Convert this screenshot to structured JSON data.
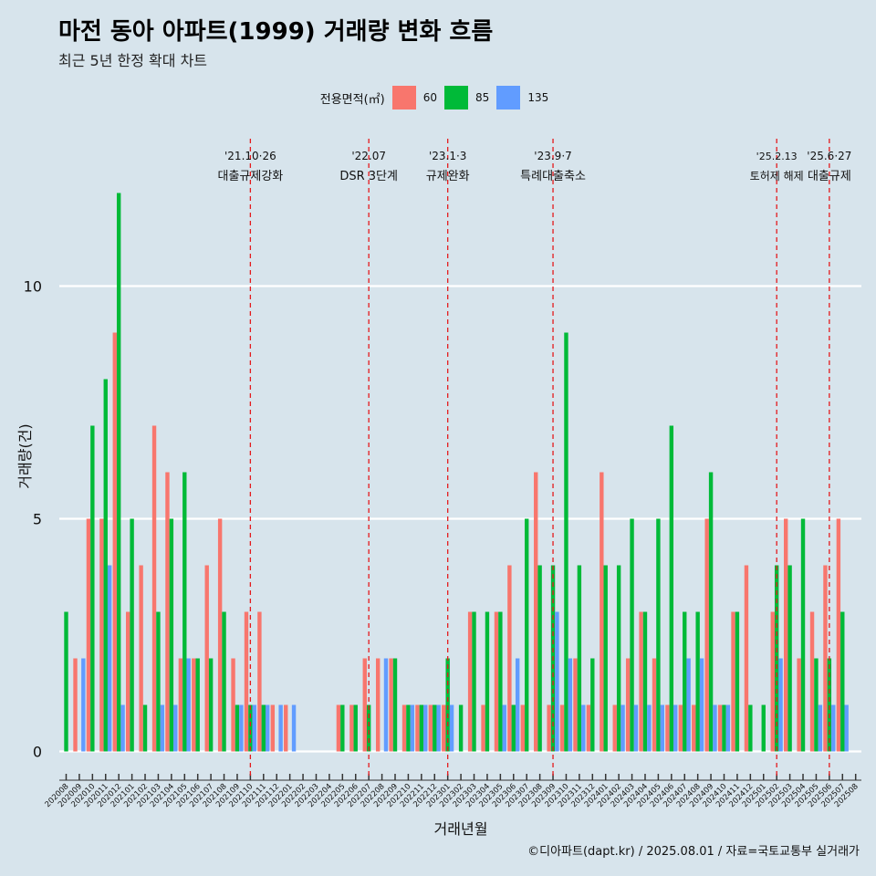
{
  "title": "마전 동아 아파트(1999) 거래량 변화 흐름",
  "subtitle": "최근 5년 한정 확대 차트",
  "caption": "©디아파트(dapt.kr) / 2025.08.01 / 자료=국토교통부 실거래가",
  "legend": {
    "title": "전용면적(㎡)",
    "items": [
      {
        "label": "60",
        "color": "#f8766d"
      },
      {
        "label": "85",
        "color": "#00ba38"
      },
      {
        "label": "135",
        "color": "#619cff"
      }
    ]
  },
  "chart_data": {
    "type": "bar",
    "xlabel": "거래년월",
    "ylabel": "거래량(건)",
    "ylim": [
      0,
      12.5
    ],
    "yticks": [
      0,
      5,
      10
    ],
    "grid": true,
    "categories": [
      "202008",
      "202009",
      "202010",
      "202011",
      "202012",
      "202101",
      "202102",
      "202103",
      "202104",
      "202105",
      "202106",
      "202107",
      "202108",
      "202109",
      "202110",
      "202111",
      "202112",
      "202201",
      "202202",
      "202203",
      "202204",
      "202205",
      "202206",
      "202207",
      "202208",
      "202209",
      "202210",
      "202211",
      "202212",
      "202301",
      "202302",
      "202303",
      "202304",
      "202305",
      "202306",
      "202307",
      "202308",
      "202309",
      "202310",
      "202311",
      "202312",
      "202401",
      "202402",
      "202403",
      "202404",
      "202405",
      "202406",
      "202407",
      "202408",
      "202409",
      "202410",
      "202411",
      "202412",
      "202501",
      "202502",
      "202503",
      "202504",
      "202505",
      "202506",
      "202507",
      "202508"
    ],
    "series": [
      {
        "name": "60",
        "color": "#f8766d",
        "values": [
          0,
          2,
          5,
          5,
          9,
          3,
          4,
          7,
          6,
          2,
          2,
          4,
          5,
          2,
          3,
          3,
          1,
          1,
          0,
          0,
          0,
          1,
          1,
          2,
          2,
          2,
          1,
          1,
          1,
          1,
          0,
          3,
          1,
          3,
          4,
          1,
          6,
          1,
          1,
          2,
          1,
          6,
          1,
          2,
          3,
          2,
          1,
          1,
          1,
          5,
          1,
          3,
          4,
          0,
          3,
          5,
          2,
          3,
          4,
          5,
          0
        ]
      },
      {
        "name": "85",
        "color": "#00ba38",
        "values": [
          3,
          0,
          7,
          8,
          12,
          5,
          1,
          3,
          5,
          6,
          2,
          2,
          3,
          1,
          1,
          1,
          0,
          0,
          0,
          0,
          0,
          1,
          1,
          1,
          0,
          2,
          1,
          1,
          1,
          2,
          1,
          3,
          3,
          3,
          1,
          5,
          4,
          4,
          9,
          4,
          2,
          4,
          4,
          5,
          3,
          5,
          7,
          3,
          3,
          6,
          1,
          3,
          1,
          1,
          4,
          4,
          5,
          2,
          2,
          3,
          0
        ]
      },
      {
        "name": "135",
        "color": "#619cff",
        "values": [
          0,
          2,
          0,
          4,
          1,
          0,
          0,
          1,
          1,
          2,
          0,
          0,
          0,
          1,
          1,
          1,
          1,
          1,
          0,
          0,
          0,
          0,
          0,
          0,
          2,
          0,
          1,
          1,
          1,
          1,
          0,
          0,
          0,
          1,
          2,
          0,
          0,
          3,
          2,
          1,
          0,
          0,
          1,
          1,
          1,
          1,
          1,
          2,
          2,
          1,
          1,
          0,
          0,
          0,
          2,
          0,
          0,
          1,
          1,
          1,
          0
        ]
      }
    ],
    "annotations": [
      {
        "x": "202110",
        "date": "'21.10·26",
        "label": "대출규제강화"
      },
      {
        "x": "202207",
        "date": "'22.07",
        "label": "DSR 3단계"
      },
      {
        "x": "202301",
        "date": "'23.1·3",
        "label": "규제완화"
      },
      {
        "x": "202309",
        "date": "'23.9·7",
        "label": "특례대출축소"
      },
      {
        "x": "202502",
        "date": "'25.2.13",
        "label": "토허제 해제"
      },
      {
        "x": "202506",
        "date": "'25.6·27",
        "label": "대출규제"
      }
    ]
  }
}
